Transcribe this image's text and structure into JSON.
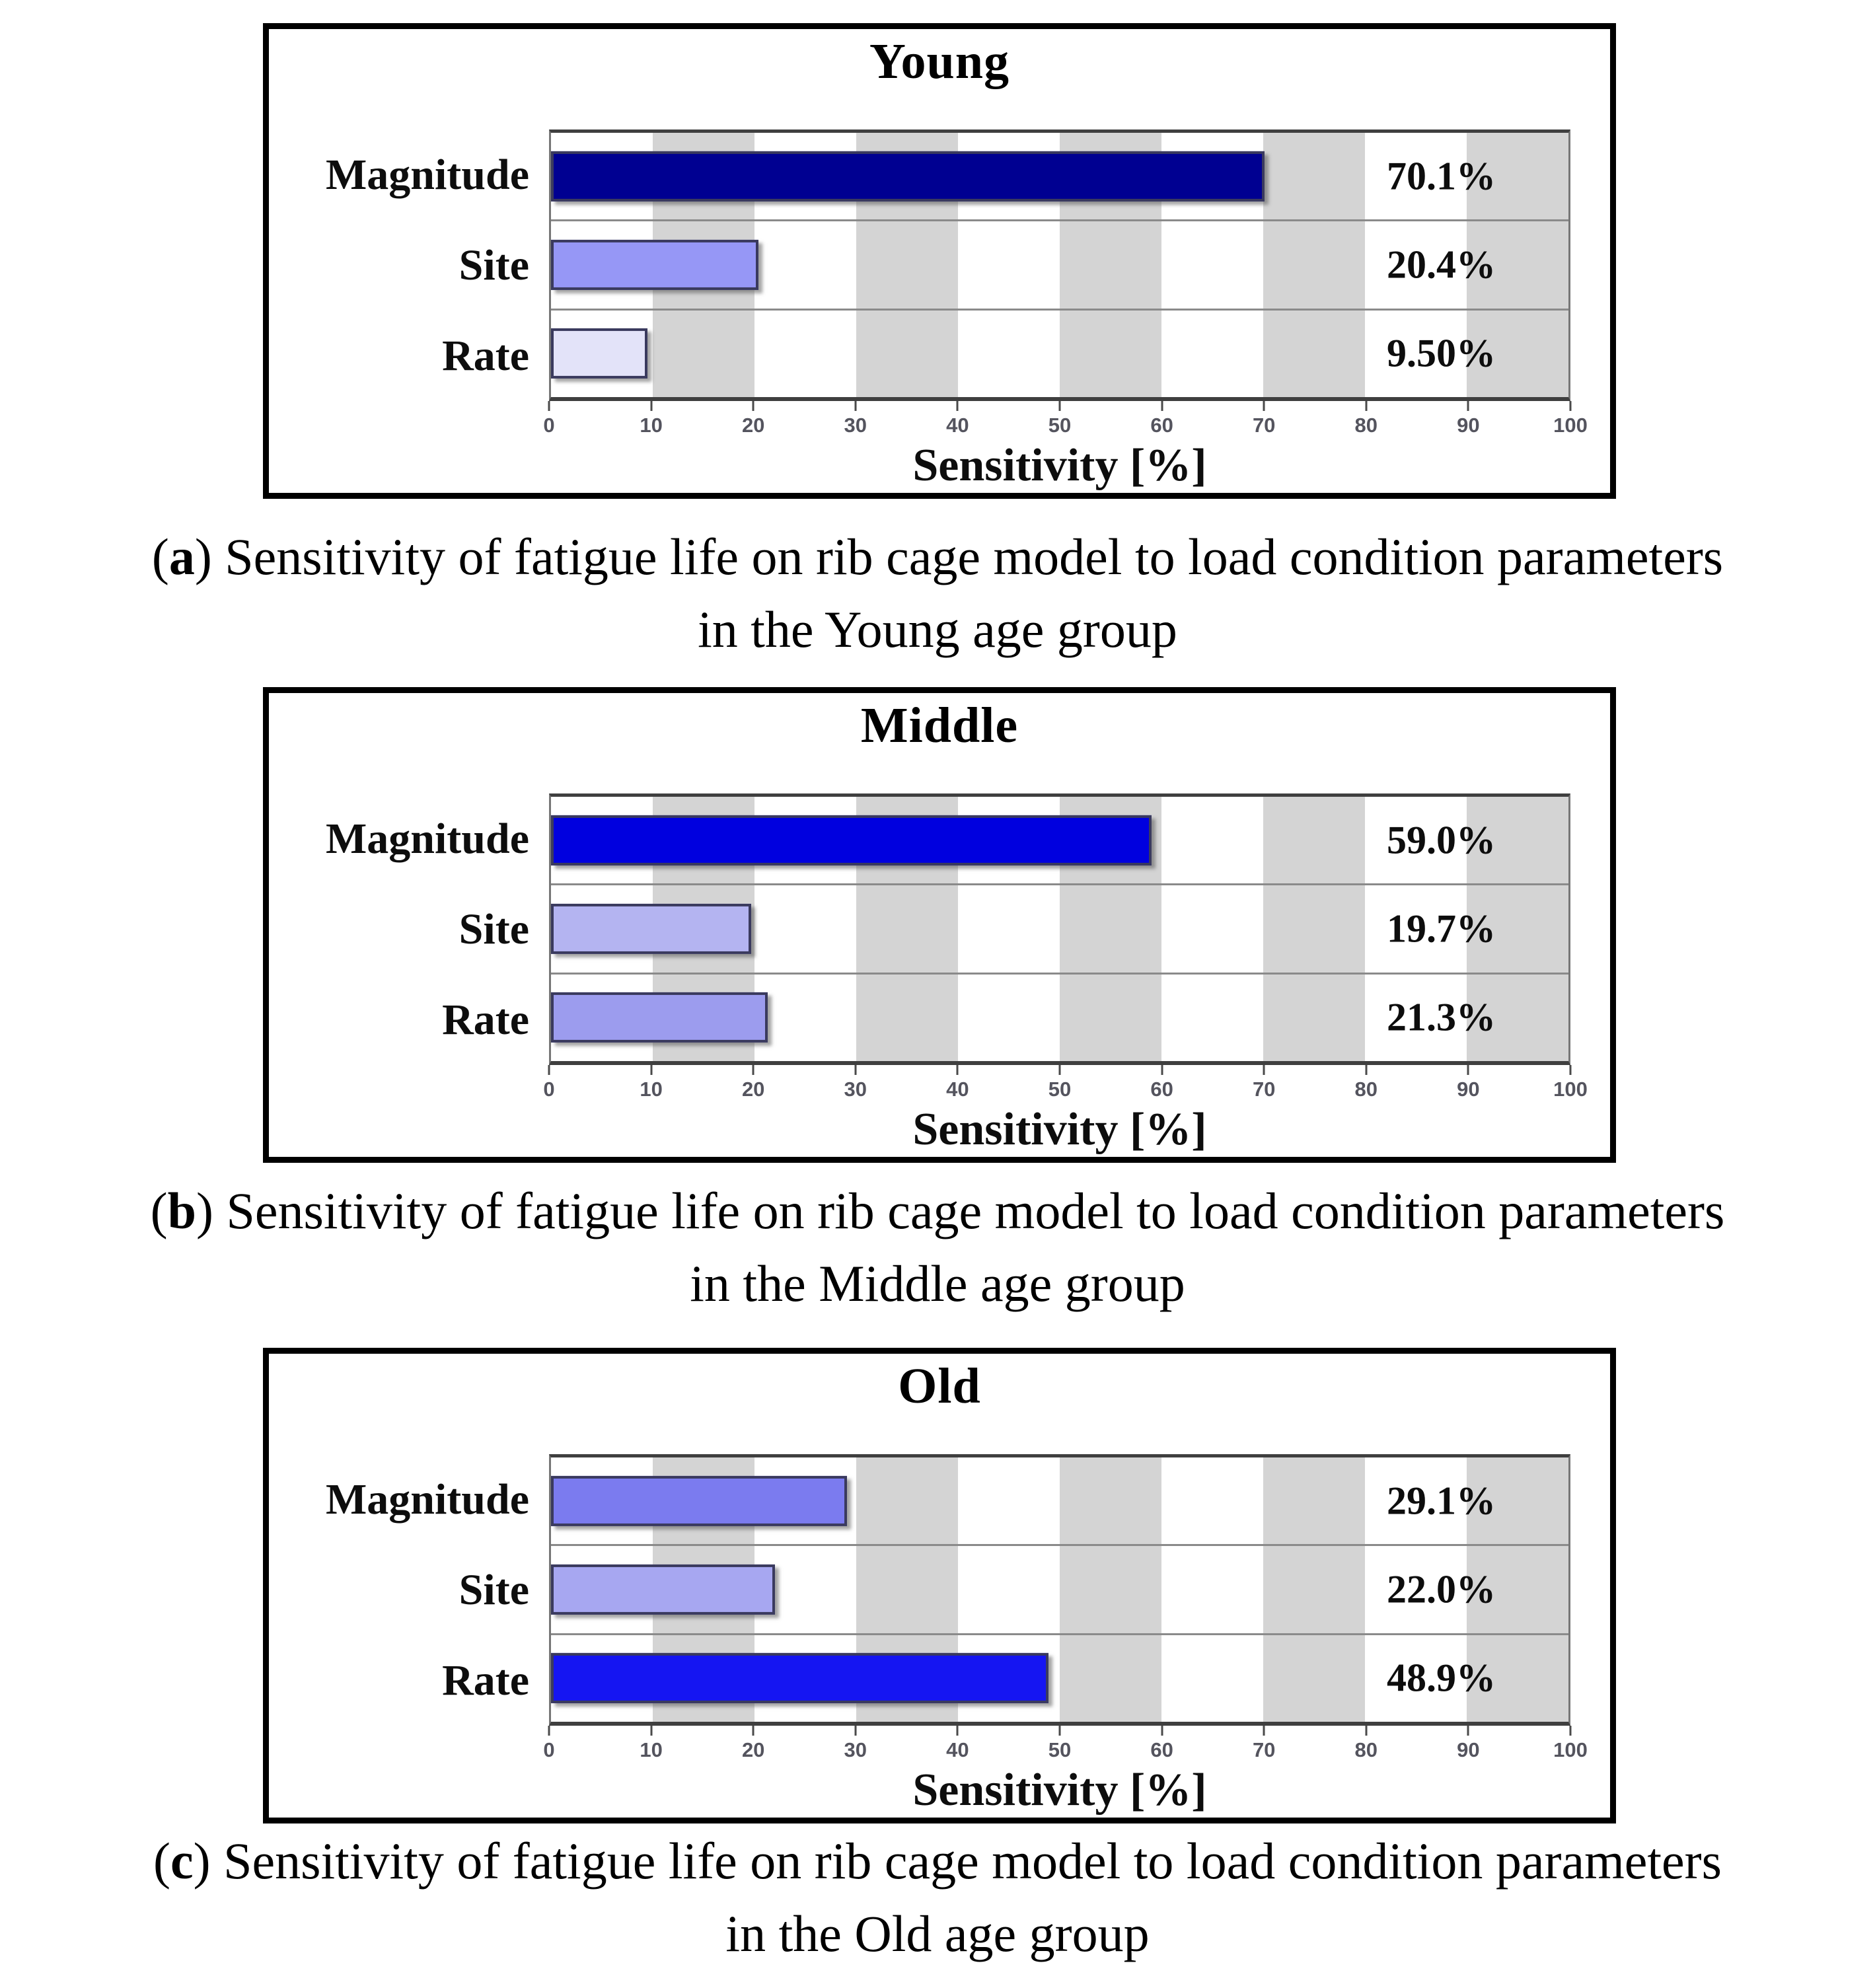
{
  "chart_data": [
    {
      "type": "bar",
      "orientation": "horizontal",
      "title": "Young",
      "categories": [
        "Magnitude",
        "Site",
        "Rate"
      ],
      "values": [
        70.1,
        20.4,
        9.5
      ],
      "value_labels": [
        "70.1%",
        "20.4%",
        "9.50%"
      ],
      "bar_colors": [
        "#000091",
        "#9697F6",
        "#E3E3F9"
      ],
      "xlabel": "Sensitivity [%]",
      "xlim": [
        0,
        100
      ],
      "xticks": [
        0,
        10,
        20,
        30,
        40,
        50,
        60,
        70,
        80,
        90,
        100
      ],
      "grid_bands": "alternating vertical white/gray every 10%",
      "legend": "none"
    },
    {
      "type": "bar",
      "orientation": "horizontal",
      "title": "Middle",
      "categories": [
        "Magnitude",
        "Site",
        "Rate"
      ],
      "values": [
        59.0,
        19.7,
        21.3
      ],
      "value_labels": [
        "59.0%",
        "19.7%",
        "21.3%"
      ],
      "bar_colors": [
        "#0000DF",
        "#B4B4F1",
        "#9C9CEE"
      ],
      "xlabel": "Sensitivity [%]",
      "xlim": [
        0,
        100
      ],
      "xticks": [
        0,
        10,
        20,
        30,
        40,
        50,
        60,
        70,
        80,
        90,
        100
      ],
      "grid_bands": "alternating vertical white/gray every 10%",
      "legend": "none"
    },
    {
      "type": "bar",
      "orientation": "horizontal",
      "title": "Old",
      "categories": [
        "Magnitude",
        "Site",
        "Rate"
      ],
      "values": [
        29.1,
        22.0,
        48.9
      ],
      "value_labels": [
        "29.1%",
        "22.0%",
        "48.9%"
      ],
      "bar_colors": [
        "#7B7BEF",
        "#A7A7F1",
        "#1515F2"
      ],
      "xlabel": "Sensitivity [%]",
      "xlim": [
        0,
        100
      ],
      "xticks": [
        0,
        10,
        20,
        30,
        40,
        50,
        60,
        70,
        80,
        90,
        100
      ],
      "grid_bands": "alternating vertical white/gray every 10%",
      "legend": "none"
    }
  ],
  "captions": [
    {
      "paren_open": "(",
      "marker": "a",
      "paren_close": ")",
      "line1": "Sensitivity of fatigue life on rib cage model to load condition parameters",
      "line2": "in the Young age group"
    },
    {
      "paren_open": "(",
      "marker": "b",
      "paren_close": ")",
      "line1": "Sensitivity of fatigue life on rib cage model to load condition parameters",
      "line2": "in the Middle age group"
    },
    {
      "paren_open": "(",
      "marker": "c",
      "paren_close": ")",
      "line1": "Sensitivity of fatigue life on rib cage model to load condition parameters",
      "line2": "in the Old age group"
    }
  ],
  "style": {
    "band_light": "#FFFFFF",
    "band_dark": "#D4D4D4",
    "panel_border": "#000000",
    "axis_color": "#3F3F3F",
    "separator_color": "#8A8A8A",
    "tick_label_color": "#54545E",
    "bar_border": "#3A3A5E"
  }
}
